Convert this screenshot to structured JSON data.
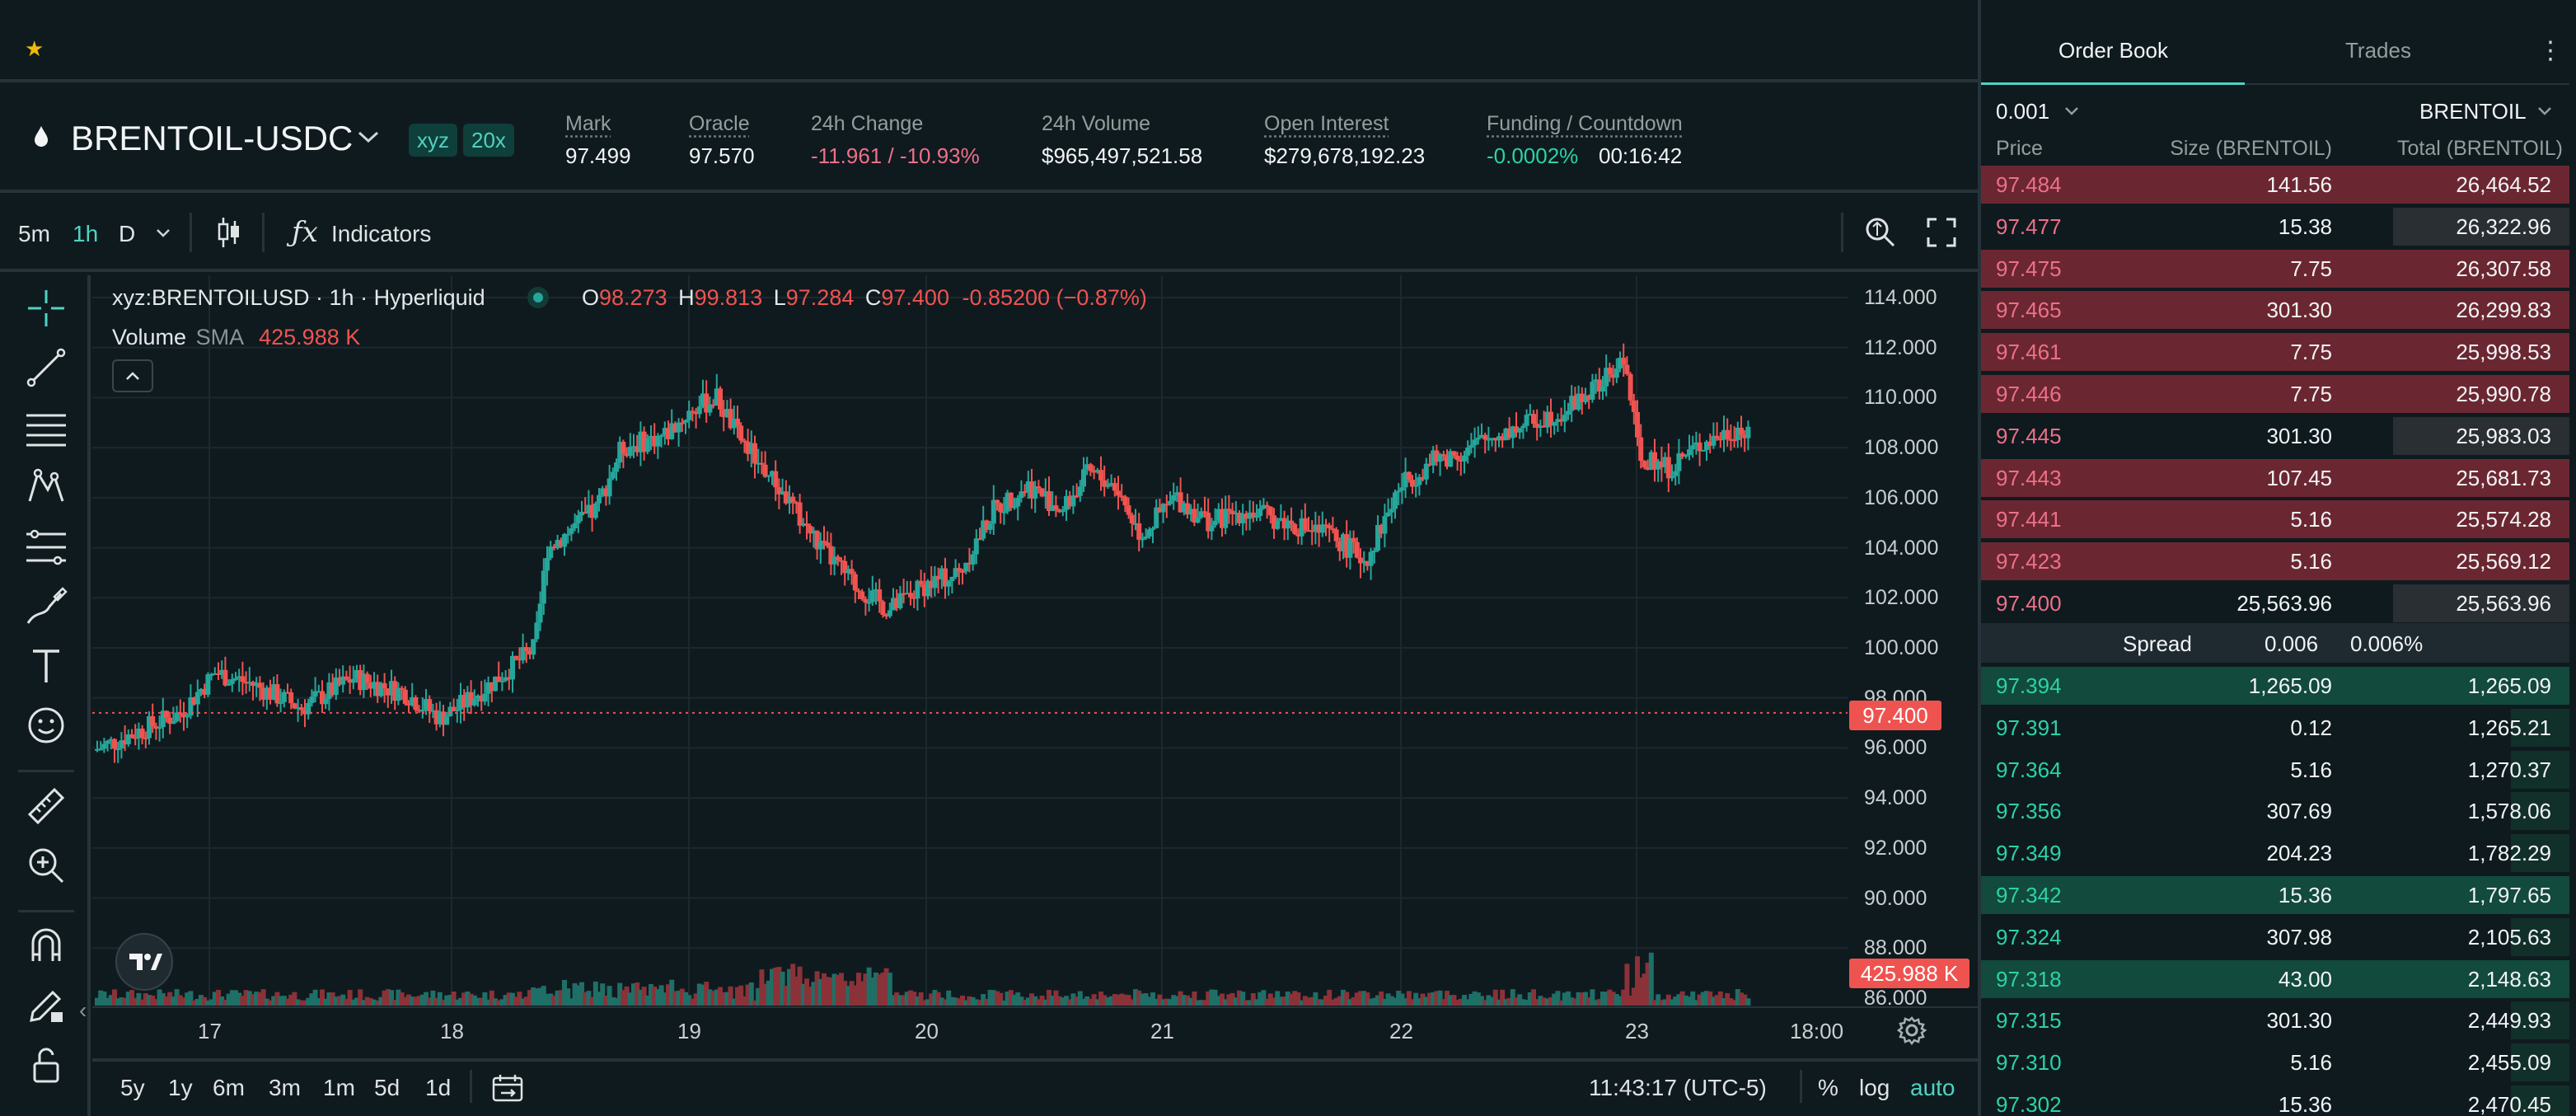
{
  "header": {
    "pair": "BRENTOIL-USDC",
    "badges": [
      "xyz",
      "20x"
    ],
    "stats": [
      {
        "label": "Mark",
        "value": "97.499"
      },
      {
        "label": "Oracle",
        "value": "97.570"
      },
      {
        "label": "24h Change",
        "value": "-11.961 / -10.93%"
      },
      {
        "label": "24h Volume",
        "value": "$965,497,521.58"
      },
      {
        "label": "Open Interest",
        "value": "$279,678,192.23"
      },
      {
        "label": "Funding / Countdown",
        "value": "-0.0002%",
        "countdown": "00:16:42"
      }
    ]
  },
  "toolbar": {
    "timeframes": [
      "5m",
      "1h",
      "D"
    ],
    "active_timeframe": "1h",
    "indicators_label": "Indicators"
  },
  "chart": {
    "legend_symbol": "xyz:BRENTOILUSD · 1h · Hyperliquid",
    "ohlc": {
      "o_label": "O",
      "o": "98.273",
      "h_label": "H",
      "h": "99.813",
      "l_label": "L",
      "l": "97.284",
      "c_label": "C",
      "c": "97.400",
      "change": "-0.85200 (−0.87%)"
    },
    "volume_label": "Volume",
    "volume_sma": "SMA",
    "volume_value": "425.988 K",
    "price_ticks": [
      "114.000",
      "112.000",
      "110.000",
      "108.000",
      "106.000",
      "104.000",
      "102.000",
      "100.000",
      "98.000",
      "96.000",
      "94.000",
      "92.000",
      "90.000",
      "88.000",
      "86.000"
    ],
    "date_ticks": [
      "17",
      "18",
      "19",
      "20",
      "21",
      "22",
      "23",
      "18:00"
    ],
    "last_price_tag": "97.400",
    "volume_tag": "425.988 K",
    "colors": {
      "up": "#26a69a",
      "down": "#ef5350"
    }
  },
  "chart_bottom": {
    "ranges": [
      "5y",
      "1y",
      "6m",
      "3m",
      "1m",
      "5d",
      "1d"
    ],
    "clock": "11:43:17 (UTC-5)",
    "percent": "%",
    "log": "log",
    "auto": "auto"
  },
  "orderbook": {
    "tabs": [
      "Order Book",
      "Trades"
    ],
    "active_tab": "Order Book",
    "tick_size": "0.001",
    "unit": "BRENTOIL",
    "columns": [
      "Price",
      "Size (BRENTOIL)",
      "Total (BRENTOIL)"
    ],
    "asks": [
      {
        "price": "97.484",
        "size": "141.56",
        "total": "26,464.52",
        "depth": 1.0
      },
      {
        "price": "97.477",
        "size": "15.38",
        "total": "26,322.96",
        "depth": 0.3
      },
      {
        "price": "97.475",
        "size": "7.75",
        "total": "26,307.58",
        "depth": 1.0
      },
      {
        "price": "97.465",
        "size": "301.30",
        "total": "26,299.83",
        "depth": 1.0
      },
      {
        "price": "97.461",
        "size": "7.75",
        "total": "25,998.53",
        "depth": 1.0
      },
      {
        "price": "97.446",
        "size": "7.75",
        "total": "25,990.78",
        "depth": 1.0
      },
      {
        "price": "97.445",
        "size": "301.30",
        "total": "25,983.03",
        "depth": 0.3
      },
      {
        "price": "97.443",
        "size": "107.45",
        "total": "25,681.73",
        "depth": 1.0
      },
      {
        "price": "97.441",
        "size": "5.16",
        "total": "25,574.28",
        "depth": 1.0
      },
      {
        "price": "97.423",
        "size": "5.16",
        "total": "25,569.12",
        "depth": 1.0
      },
      {
        "price": "97.400",
        "size": "25,563.96",
        "total": "25,563.96",
        "depth": 0.3
      }
    ],
    "spread": {
      "label": "Spread",
      "value": "0.006",
      "percent": "0.006%"
    },
    "bids": [
      {
        "price": "97.394",
        "size": "1,265.09",
        "total": "1,265.09",
        "depth": 1.0
      },
      {
        "price": "97.391",
        "size": "0.12",
        "total": "1,265.21",
        "depth": 0.1
      },
      {
        "price": "97.364",
        "size": "5.16",
        "total": "1,270.37",
        "depth": 0.1
      },
      {
        "price": "97.356",
        "size": "307.69",
        "total": "1,578.06",
        "depth": 0.1
      },
      {
        "price": "97.349",
        "size": "204.23",
        "total": "1,782.29",
        "depth": 0.1
      },
      {
        "price": "97.342",
        "size": "15.36",
        "total": "1,797.65",
        "depth": 1.0
      },
      {
        "price": "97.324",
        "size": "307.98",
        "total": "2,105.63",
        "depth": 0.1
      },
      {
        "price": "97.318",
        "size": "43.00",
        "total": "2,148.63",
        "depth": 1.0
      },
      {
        "price": "97.315",
        "size": "301.30",
        "total": "2,449.93",
        "depth": 0.1
      },
      {
        "price": "97.310",
        "size": "5.16",
        "total": "2,455.09",
        "depth": 0.1
      },
      {
        "price": "97.302",
        "size": "15.36",
        "total": "2,470.45",
        "depth": 0.1
      }
    ]
  }
}
